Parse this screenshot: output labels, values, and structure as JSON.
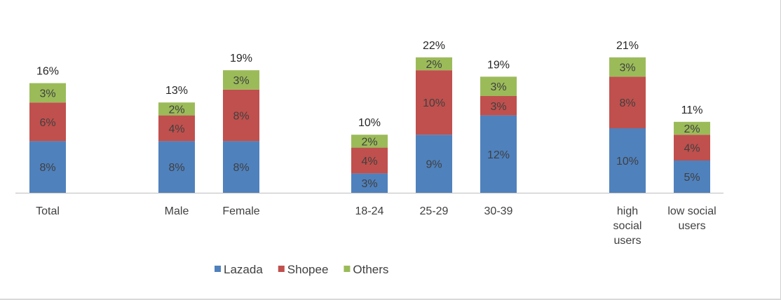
{
  "chart_data": {
    "type": "bar",
    "stacked": true,
    "title": "",
    "xlabel": "",
    "ylabel": "",
    "categories": [
      "Total",
      "Male",
      "Female",
      "18-24",
      "25-29",
      "30-39",
      "high social users",
      "low social users"
    ],
    "category_groups": [
      [
        "Total"
      ],
      [
        "Male",
        "Female"
      ],
      [
        "18-24",
        "25-29",
        "30-39"
      ],
      [
        "high social users",
        "low social users"
      ]
    ],
    "series": [
      {
        "name": "Lazada",
        "color": "#4f81bd",
        "values": [
          8,
          8,
          8,
          3,
          9,
          12,
          10,
          5
        ],
        "labels": [
          "8%",
          "8%",
          "8%",
          "3%",
          "9%",
          "12%",
          "10%",
          "5%"
        ]
      },
      {
        "name": "Shopee",
        "color": "#c0504d",
        "values": [
          6,
          4,
          8,
          4,
          10,
          3,
          8,
          4
        ],
        "labels": [
          "6%",
          "4%",
          "8%",
          "4%",
          "10%",
          "3%",
          "8%",
          "4%"
        ]
      },
      {
        "name": "Others",
        "color": "#9bbb59",
        "values": [
          3,
          2,
          3,
          2,
          2,
          3,
          3,
          2
        ],
        "labels": [
          "3%",
          "2%",
          "3%",
          "2%",
          "2%",
          "3%",
          "3%",
          "2%"
        ]
      }
    ],
    "totals": [
      16,
      13,
      19,
      10,
      22,
      19,
      21,
      11
    ],
    "total_labels": [
      "16%",
      "13%",
      "19%",
      "10%",
      "22%",
      "19%",
      "21%",
      "11%"
    ],
    "ylim": [
      0,
      22
    ],
    "grid": false,
    "legend": "bottom-center"
  }
}
